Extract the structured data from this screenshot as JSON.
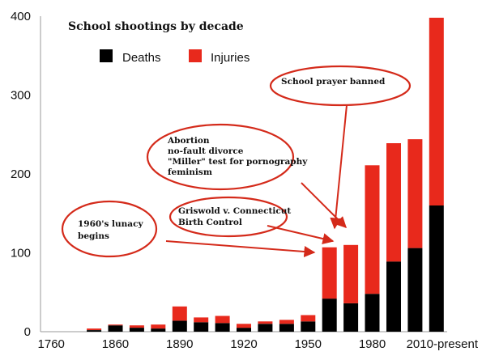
{
  "chart_data": {
    "type": "bar",
    "stacked": true,
    "title": "School shootings by decade",
    "x_tick_labels": [
      "1760",
      "1860",
      "1890",
      "1920",
      "1950",
      "1980",
      "2010-present"
    ],
    "ylim": [
      0,
      400
    ],
    "y_ticks": [
      0,
      100,
      200,
      300,
      400
    ],
    "grid": false,
    "legend_position": "top-left",
    "colors": {
      "deaths": "#000000",
      "injuries": "#e8291c",
      "annotation": "#d42a1a"
    },
    "series": [
      {
        "name": "Deaths",
        "values": [
          0,
          0,
          2,
          8,
          5,
          4,
          14,
          12,
          11,
          5,
          10,
          10,
          13,
          42,
          36,
          48,
          89,
          106,
          160
        ]
      },
      {
        "name": "Injuries",
        "values": [
          0,
          0,
          2,
          1,
          3,
          5,
          18,
          6,
          9,
          5,
          3,
          5,
          8,
          65,
          74,
          163,
          150,
          138,
          238
        ]
      }
    ],
    "annotations": [
      {
        "id": "lunacy",
        "lines": [
          "1960's lunacy",
          "begins"
        ]
      },
      {
        "id": "griswold",
        "lines": [
          "Griswold v. Connecticut",
          "Birth Control"
        ]
      },
      {
        "id": "abortion",
        "lines": [
          "Abortion",
          "no-fault divorce",
          "\"Miller\" test for pornography",
          "feminism"
        ]
      },
      {
        "id": "prayer",
        "lines": [
          "School prayer banned"
        ]
      }
    ]
  }
}
